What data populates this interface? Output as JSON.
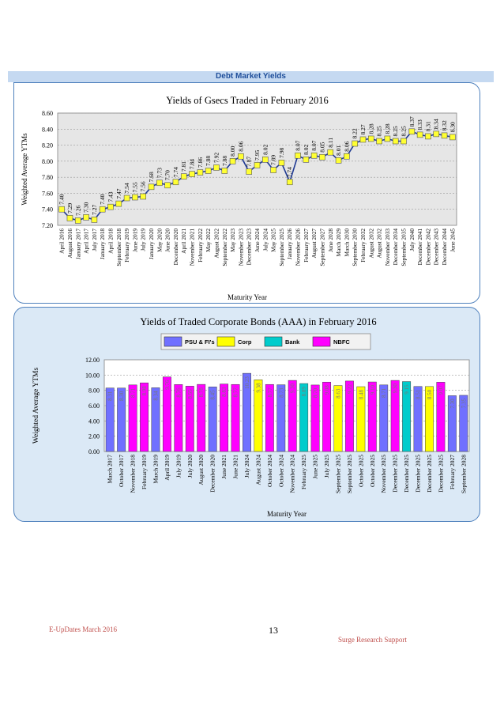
{
  "banner": "Debt Market Yields",
  "footer": {
    "left": "E-UpDates March 2016",
    "page": "13",
    "right": "Surge Research Support"
  },
  "chart_data": [
    {
      "type": "line",
      "title": "Yields of Gsecs Traded in February 2016",
      "xlabel": "Maturity Year",
      "ylabel": "Weighted Average YTMs",
      "ylim": [
        7.2,
        8.6
      ],
      "yticks": [
        "7.20",
        "7.40",
        "7.60",
        "7.80",
        "8.00",
        "8.20",
        "8.40",
        "8.60"
      ],
      "grid": true,
      "colors": {
        "line": "#1f3a93",
        "marker": "#ffff33"
      },
      "categories": [
        "April 2016",
        "August 2016",
        "January 2017",
        "April 2017",
        "July 2017",
        "January 2018",
        "April 2018",
        "September 2018",
        "February 2019",
        "June 2019",
        "July 2019",
        "January 2020",
        "May 2020",
        "June 2020",
        "December 2020",
        "April 2021",
        "November 2021",
        "February 2022",
        "May 2022",
        "August 2022",
        "September 2022",
        "May 2023",
        "November 2023",
        "December 2023",
        "June 2024",
        "July 2024",
        "May 2025",
        "September 2025",
        "January 2026",
        "November 2026",
        "February 2027",
        "August 2027",
        "September 2027",
        "June 2028",
        "March 2029",
        "March 2030",
        "September 2030",
        "February 2032",
        "August 2032",
        "August 2032",
        "November 2033",
        "December 2034",
        "September 2035",
        "July 2040",
        "December 2041",
        "December 2042",
        "December 2043",
        "December 2044",
        "June 2045"
      ],
      "values": [
        7.4,
        7.29,
        7.26,
        7.3,
        7.27,
        7.4,
        7.43,
        7.47,
        7.54,
        7.55,
        7.56,
        7.68,
        7.73,
        7.7,
        7.74,
        7.81,
        7.84,
        7.86,
        7.88,
        7.92,
        7.88,
        8.0,
        8.06,
        7.87,
        7.95,
        8.02,
        7.89,
        7.98,
        7.74,
        8.07,
        8.02,
        8.07,
        8.05,
        8.11,
        8.01,
        8.06,
        8.22,
        8.27,
        8.28,
        8.25,
        8.28,
        8.25,
        8.25,
        8.37,
        8.33,
        8.31,
        8.34,
        8.32,
        8.3
      ]
    },
    {
      "type": "bar",
      "title": "Yields of Traded Corporate Bonds (AAA) in February 2016",
      "xlabel": "Maturity Year",
      "ylabel": "Weighted Average YTMs",
      "ylim": [
        0,
        12
      ],
      "yticks": [
        "0.00",
        "2.00",
        "4.00",
        "6.00",
        "8.00",
        "10.00",
        "12.00"
      ],
      "grid": true,
      "legend": [
        {
          "name": "PSU & FI's",
          "color": "#7070ff"
        },
        {
          "name": "Corp",
          "color": "#ffff00"
        },
        {
          "name": "Bank",
          "color": "#00cccc"
        },
        {
          "name": "NBFC",
          "color": "#ff00ff"
        }
      ],
      "categories": [
        "March 2017",
        "October 2017",
        "November 2018",
        "February 2019",
        "March 2019",
        "April 2019",
        "July 2019",
        "July 2020",
        "August 2020",
        "December 2020",
        "June 2021",
        "June 2021",
        "July 2024",
        "August 2024",
        "October 2024",
        "October 2024",
        "November 2024",
        "February 2025",
        "June 2025",
        "July 2025",
        "September 2025",
        "September 2025",
        "October 2025",
        "October 2025",
        "November 2025",
        "December 2025",
        "December 2025",
        "December 2025",
        "December 2025",
        "December 2025",
        "February 2027",
        "September 2028"
      ],
      "values": [
        8.31,
        8.3,
        8.71,
        8.98,
        8.34,
        9.76,
        8.76,
        8.55,
        8.78,
        8.45,
        8.83,
        8.77,
        10.23,
        9.38,
        8.77,
        8.73,
        9.3,
        8.89,
        8.7,
        9.08,
        8.63,
        9.22,
        8.48,
        9.1,
        8.71,
        9.3,
        9.15,
        8.51,
        8.5,
        9.07,
        7.3,
        7.35
      ],
      "bar_types": [
        "PSU & FI's",
        "PSU & FI's",
        "NBFC",
        "NBFC",
        "PSU & FI's",
        "NBFC",
        "NBFC",
        "NBFC",
        "NBFC",
        "PSU & FI's",
        "NBFC",
        "NBFC",
        "PSU & FI's",
        "Corp",
        "NBFC",
        "PSU & FI's",
        "NBFC",
        "Bank",
        "NBFC",
        "NBFC",
        "Corp",
        "NBFC",
        "Corp",
        "NBFC",
        "PSU & FI's",
        "NBFC",
        "Bank",
        "PSU & FI's",
        "Corp",
        "NBFC",
        "PSU & FI's",
        "PSU & FI's"
      ]
    }
  ]
}
